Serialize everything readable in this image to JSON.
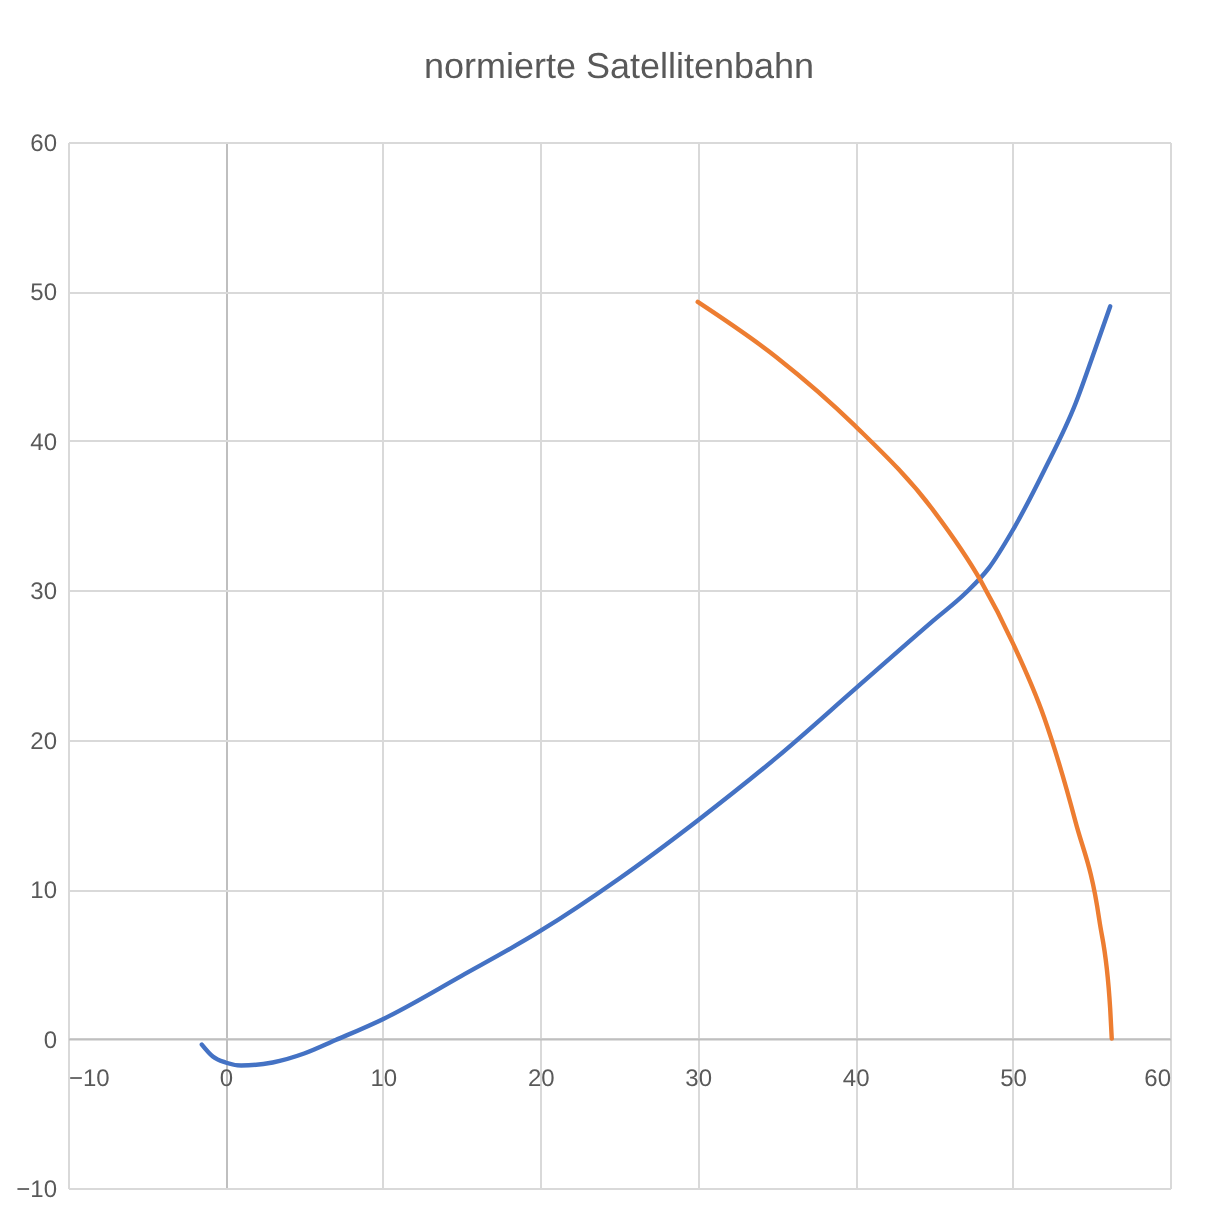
{
  "chart_data": {
    "type": "line",
    "title": "normierte Satellitenbahn",
    "series": [
      {
        "color": "#4472c4",
        "x": [
          -1.5,
          -0.8,
          0,
          1,
          3,
          5,
          7,
          10,
          15,
          20,
          25,
          30,
          35,
          40,
          45,
          47,
          48.5,
          50,
          52,
          54,
          55.2,
          56.2
        ],
        "values": [
          -0.4,
          -1.2,
          -1.6,
          -1.8,
          -1.6,
          -1,
          -0.1,
          1.3,
          4.2,
          7.2,
          10.7,
          14.6,
          18.8,
          23.4,
          28,
          29.8,
          31.5,
          34,
          38,
          42.5,
          46,
          49
        ]
      },
      {
        "color": "#ed7d31",
        "x": [
          30,
          35,
          40,
          45,
          48,
          50,
          52,
          54,
          55.5,
          56.2,
          56.3
        ],
        "values": [
          49.3,
          45.6,
          41,
          35.3,
          30.6,
          26.5,
          21.5,
          14.5,
          8,
          2,
          0
        ]
      }
    ],
    "xlim": [
      -10,
      60
    ],
    "xticks": [
      -10,
      0,
      10,
      20,
      30,
      40,
      50,
      60
    ],
    "ylim": [
      -10,
      60
    ],
    "yticks": [
      -10,
      0,
      10,
      20,
      30,
      40,
      50,
      60
    ],
    "grid": true,
    "marker": "none",
    "line_style": "solid"
  }
}
